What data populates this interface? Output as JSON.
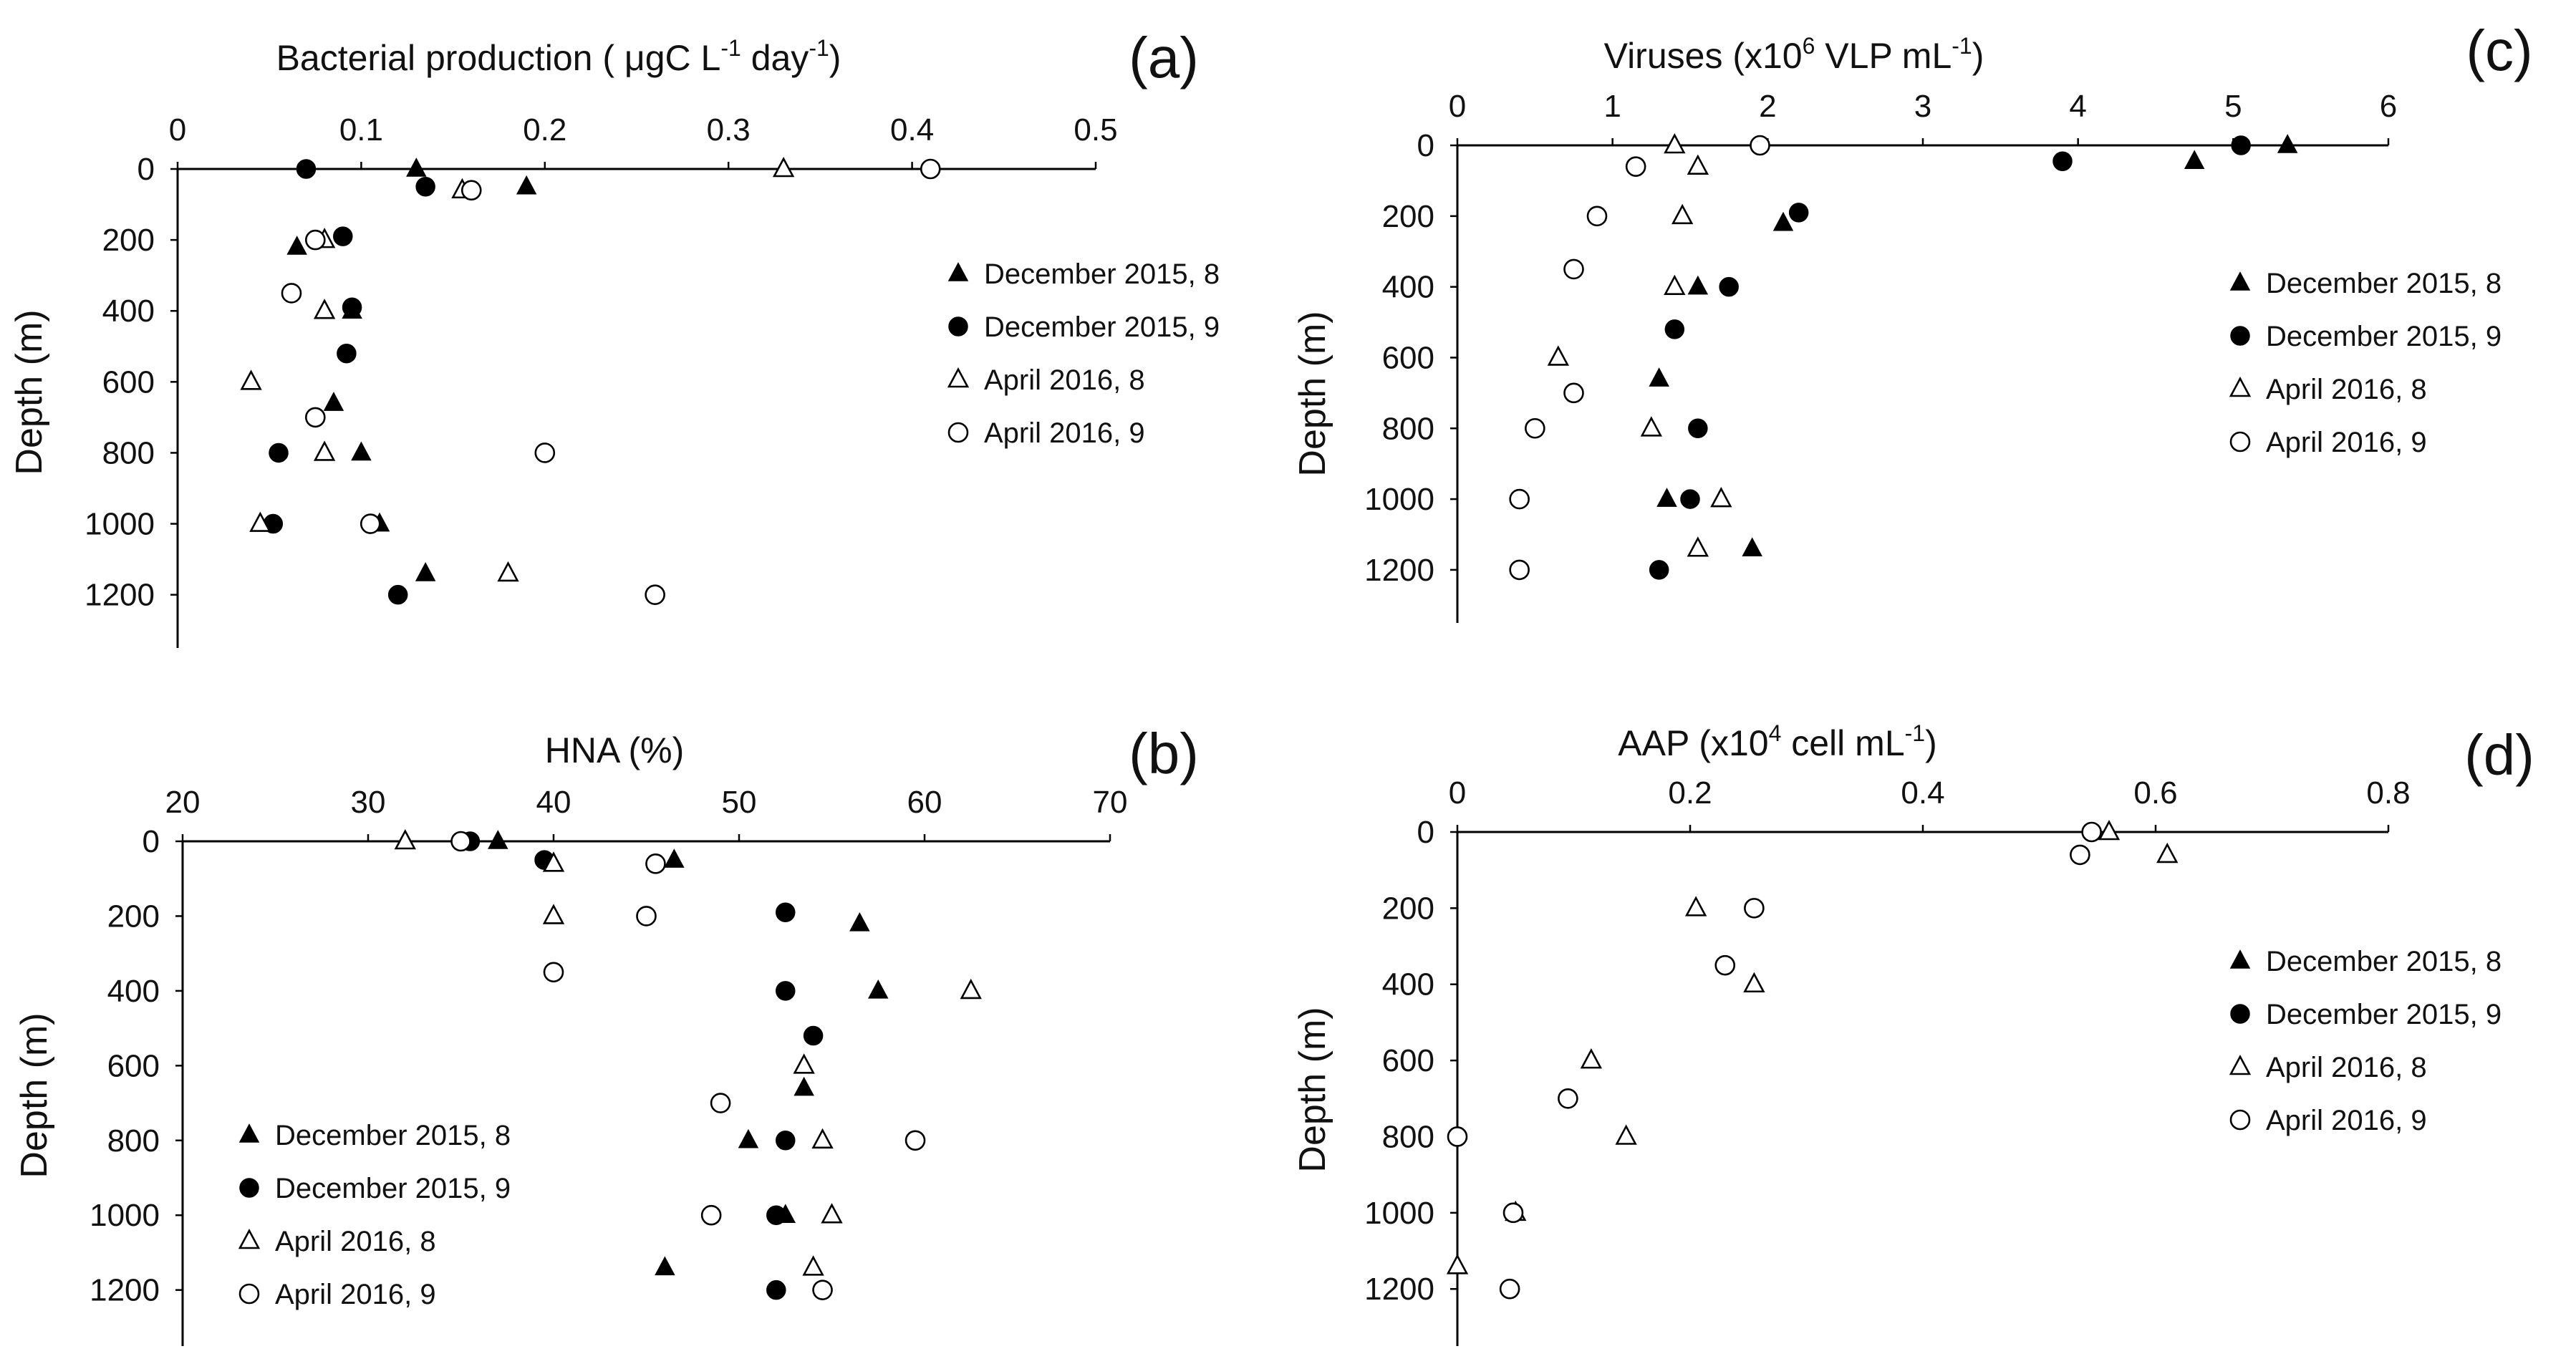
{
  "chart_data": [
    {
      "id": "a",
      "type": "scatter",
      "panel_label": "(a)",
      "title_main": "Bacterial production ( μgC L",
      "title_parts": [
        {
          "text": "Bacterial production ( μgC L",
          "sup": false
        },
        {
          "text": "-1",
          "sup": true
        },
        {
          "text": " day",
          "sup": false
        },
        {
          "text": "-1",
          "sup": true
        },
        {
          "text": ")",
          "sup": false
        }
      ],
      "xlabel": "",
      "ylabel": "Depth (m)",
      "xlim": [
        0,
        0.5
      ],
      "ylim": [
        0,
        1350
      ],
      "x_ticks": [
        "0",
        "0.1",
        "0.2",
        "0.3",
        "0.4",
        "0.5"
      ],
      "x_tick_values": [
        0,
        0.1,
        0.2,
        0.3,
        0.4,
        0.5
      ],
      "y_ticks": [
        "0",
        "200",
        "400",
        "600",
        "800",
        "1000",
        "1200"
      ],
      "y_tick_values": [
        0,
        200,
        400,
        600,
        800,
        1000,
        1200
      ],
      "legend_position": "right",
      "series": [
        {
          "name": "December 2015, 8",
          "marker": "triangle-filled",
          "x": [
            0.13,
            0.19,
            0.065,
            0.095,
            0.085,
            0.1,
            0.11,
            0.135
          ],
          "y": [
            0,
            50,
            220,
            400,
            660,
            800,
            1000,
            1140
          ]
        },
        {
          "name": "December 2015, 9",
          "marker": "circle-filled",
          "x": [
            0.07,
            0.135,
            0.09,
            0.095,
            0.092,
            0.055,
            0.052,
            0.12
          ],
          "y": [
            0,
            50,
            190,
            390,
            520,
            800,
            1000,
            1200
          ]
        },
        {
          "name": "April 2016, 8",
          "marker": "triangle-open",
          "x": [
            0.33,
            0.155,
            0.08,
            0.08,
            0.04,
            0.08,
            0.045,
            0.18
          ],
          "y": [
            0,
            60,
            200,
            400,
            600,
            800,
            1000,
            1140
          ]
        },
        {
          "name": "April 2016, 9",
          "marker": "circle-open",
          "x": [
            0.41,
            0.16,
            0.075,
            0.062,
            0.075,
            0.2,
            0.105,
            0.26
          ],
          "y": [
            0,
            60,
            200,
            350,
            700,
            800,
            1000,
            1200
          ]
        }
      ]
    },
    {
      "id": "b",
      "type": "scatter",
      "panel_label": "(b)",
      "title_main": "HNA (%)",
      "title_parts": [
        {
          "text": "HNA (%)",
          "sup": false
        }
      ],
      "xlabel": "",
      "ylabel": "Depth (m)",
      "xlim": [
        20,
        70
      ],
      "ylim": [
        0,
        1350
      ],
      "x_ticks": [
        "20",
        "30",
        "40",
        "50",
        "60",
        "70"
      ],
      "x_tick_values": [
        20,
        30,
        40,
        50,
        60,
        70
      ],
      "y_ticks": [
        "0",
        "200",
        "400",
        "600",
        "800",
        "1000",
        "1200"
      ],
      "y_tick_values": [
        0,
        200,
        400,
        600,
        800,
        1000,
        1200
      ],
      "legend_position": "lower-left",
      "series": [
        {
          "name": "December 2015, 8",
          "marker": "triangle-filled",
          "x": [
            37,
            46.5,
            56.5,
            57.5,
            53.5,
            50.5,
            52.5,
            46
          ],
          "y": [
            0,
            50,
            220,
            400,
            660,
            800,
            1000,
            1140
          ]
        },
        {
          "name": "December 2015, 9",
          "marker": "circle-filled",
          "x": [
            35.5,
            39.5,
            52.5,
            52.5,
            54,
            52.5,
            52,
            52
          ],
          "y": [
            0,
            50,
            190,
            400,
            520,
            800,
            1000,
            1200
          ]
        },
        {
          "name": "April 2016, 8",
          "marker": "triangle-open",
          "x": [
            32,
            40,
            40,
            62.5,
            53.5,
            54.5,
            55,
            54
          ],
          "y": [
            0,
            60,
            200,
            400,
            600,
            800,
            1000,
            1140
          ]
        },
        {
          "name": "April 2016, 9",
          "marker": "circle-open",
          "x": [
            35,
            45.5,
            45,
            40,
            49,
            59.5,
            48.5,
            54.5
          ],
          "y": [
            0,
            60,
            200,
            350,
            700,
            800,
            1000,
            1200
          ]
        }
      ]
    },
    {
      "id": "c",
      "type": "scatter",
      "panel_label": "(c)",
      "title_main": "Viruses (x10",
      "title_parts": [
        {
          "text": "Viruses (x10",
          "sup": false
        },
        {
          "text": "6",
          "sup": true
        },
        {
          "text": " VLP mL",
          "sup": false
        },
        {
          "text": "-1",
          "sup": true
        },
        {
          "text": ")",
          "sup": false
        }
      ],
      "xlabel": "",
      "ylabel": "Depth (m)",
      "xlim": [
        0,
        6
      ],
      "ylim": [
        0,
        1350
      ],
      "x_ticks": [
        "0",
        "1",
        "2",
        "3",
        "4",
        "5",
        "6"
      ],
      "x_tick_values": [
        0,
        1,
        2,
        3,
        4,
        5,
        6
      ],
      "y_ticks": [
        "0",
        "200",
        "400",
        "600",
        "800",
        "1000",
        "1200"
      ],
      "y_tick_values": [
        0,
        200,
        400,
        600,
        800,
        1000,
        1200
      ],
      "legend_position": "right",
      "series": [
        {
          "name": "December 2015, 8",
          "marker": "triangle-filled",
          "x": [
            5.35,
            4.75,
            2.1,
            1.55,
            1.3,
            1.25,
            1.35,
            1.9
          ],
          "y": [
            0,
            45,
            220,
            400,
            660,
            800,
            1000,
            1140
          ]
        },
        {
          "name": "December 2015, 9",
          "marker": "circle-filled",
          "x": [
            5.05,
            3.9,
            2.2,
            1.75,
            1.4,
            1.55,
            1.5,
            1.3
          ],
          "y": [
            0,
            45,
            190,
            400,
            520,
            800,
            1000,
            1200
          ]
        },
        {
          "name": "April 2016, 8",
          "marker": "triangle-open",
          "x": [
            1.4,
            1.55,
            1.45,
            1.4,
            0.65,
            1.25,
            1.7,
            1.55
          ],
          "y": [
            0,
            60,
            200,
            400,
            600,
            800,
            1000,
            1140
          ]
        },
        {
          "name": "April 2016, 9",
          "marker": "circle-open",
          "x": [
            1.95,
            1.15,
            0.9,
            0.75,
            0.75,
            0.5,
            0.4,
            0.4
          ],
          "y": [
            0,
            60,
            200,
            350,
            700,
            800,
            1000,
            1200
          ]
        }
      ]
    },
    {
      "id": "d",
      "type": "scatter",
      "panel_label": "(d)",
      "title_main": "AAP (x10",
      "title_parts": [
        {
          "text": "AAP (x10",
          "sup": false
        },
        {
          "text": "4",
          "sup": true
        },
        {
          "text": " cell mL",
          "sup": false
        },
        {
          "text": "-1",
          "sup": true
        },
        {
          "text": ")",
          "sup": false
        }
      ],
      "xlabel": "",
      "ylabel": "Depth (m)",
      "xlim": [
        0,
        0.8
      ],
      "ylim": [
        0,
        1350
      ],
      "x_ticks": [
        "0",
        "0.2",
        "0.4",
        "0.6",
        "0.8"
      ],
      "x_tick_values": [
        0,
        0.2,
        0.4,
        0.6,
        0.8
      ],
      "y_ticks": [
        "0",
        "200",
        "400",
        "600",
        "800",
        "1000",
        "1200"
      ],
      "y_tick_values": [
        0,
        200,
        400,
        600,
        800,
        1000,
        1200
      ],
      "legend_position": "right",
      "series": [
        {
          "name": "December 2015, 8",
          "marker": "triangle-filled",
          "x": [],
          "y": []
        },
        {
          "name": "December 2015, 9",
          "marker": "circle-filled",
          "x": [],
          "y": []
        },
        {
          "name": "April 2016, 8",
          "marker": "triangle-open",
          "x": [
            0.56,
            0.61,
            0.205,
            0.255,
            0.115,
            0.145,
            0.05,
            0.0
          ],
          "y": [
            0,
            60,
            200,
            400,
            600,
            800,
            1000,
            1140
          ]
        },
        {
          "name": "April 2016, 9",
          "marker": "circle-open",
          "x": [
            0.545,
            0.535,
            0.255,
            0.23,
            0.095,
            0.0,
            0.048,
            0.045
          ],
          "y": [
            0,
            60,
            200,
            350,
            700,
            800,
            1000,
            1200
          ]
        }
      ]
    }
  ]
}
